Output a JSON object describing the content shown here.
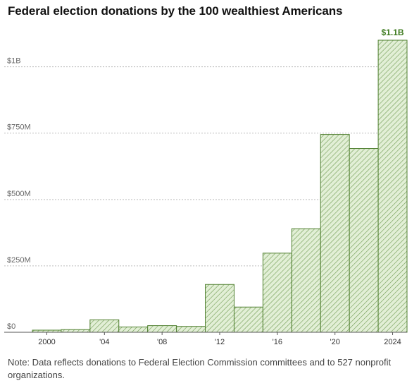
{
  "title": "Federal election donations by the 100 wealthiest Americans",
  "note": "Note: Data reflects donations to Federal Election Commission committees and to 527 nonprofit organizations.",
  "colors": {
    "bar_fill": "#e2efd6",
    "bar_stroke": "#4f7f2f",
    "hatch": "#6f9a52",
    "callout": "#3d7a1e",
    "grid": "#bdbdbd"
  },
  "chart_data": {
    "type": "bar",
    "title": "Federal election donations by the 100 wealthiest Americans",
    "categories": [
      "2000",
      "2002",
      "2004",
      "2006",
      "2008",
      "2010",
      "2012",
      "2014",
      "2016",
      "2018",
      "2020",
      "2022",
      "2024"
    ],
    "values": [
      8,
      10,
      47,
      20,
      25,
      22,
      180,
      95,
      298,
      390,
      745,
      692,
      1100
    ],
    "unit": "USD millions",
    "ylim": [
      0,
      1100
    ],
    "y_ticks": [
      {
        "value": 0,
        "label": "$0"
      },
      {
        "value": 250,
        "label": "$250M"
      },
      {
        "value": 500,
        "label": "$500M"
      },
      {
        "value": 750,
        "label": "$750M"
      },
      {
        "value": 1000,
        "label": "$1B"
      }
    ],
    "x_tick_labels": [
      {
        "category": "2000",
        "label": "2000"
      },
      {
        "category": "2004",
        "label": "'04"
      },
      {
        "category": "2008",
        "label": "'08"
      },
      {
        "category": "2012",
        "label": "'12"
      },
      {
        "category": "2016",
        "label": "'16"
      },
      {
        "category": "2020",
        "label": "'20"
      },
      {
        "category": "2024",
        "label": "2024"
      }
    ],
    "annotation": {
      "category": "2024",
      "label": "$1.1B"
    },
    "grid": true,
    "legend": "none",
    "xlabel": "",
    "ylabel": ""
  }
}
